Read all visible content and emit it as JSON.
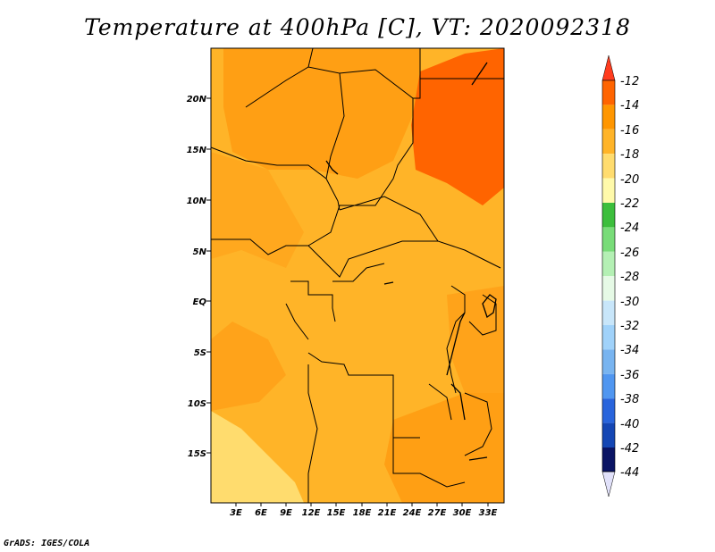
{
  "title": "Temperature at 400hPa [C], VT: 2020092318",
  "footer": "GrADS: IGES/COLA",
  "map": {
    "lat_labels": [
      "20N",
      "15N",
      "10N",
      "5N",
      "EQ",
      "5S",
      "10S",
      "15S"
    ],
    "lon_labels": [
      "3E",
      "6E",
      "9E",
      "12E",
      "15E",
      "18E",
      "21E",
      "24E",
      "27E",
      "30E",
      "33E"
    ]
  },
  "colorbar": {
    "labels": [
      "-12",
      "-14",
      "-16",
      "-18",
      "-20",
      "-22",
      "-24",
      "-26",
      "-28",
      "-30",
      "-32",
      "-34",
      "-36",
      "-38",
      "-40",
      "-42",
      "-44"
    ],
    "colors": {
      "above": "#ff3c1e",
      "c_12_14": "#ff6400",
      "c_14_16": "#ff9600",
      "c_16_18": "#ffb428",
      "c_18_20": "#ffdc6e",
      "c_20_22": "#fffaaa",
      "c_22_24": "#3cbe3c",
      "c_24_26": "#78dc78",
      "c_26_28": "#b4f0b4",
      "c_28_30": "#e6fae6",
      "c_30_32": "#c8e6fa",
      "c_32_34": "#a0d2fa",
      "c_34_36": "#78b4f0",
      "c_36_38": "#5096f0",
      "c_38_40": "#2864dc",
      "c_40_42": "#1446b4",
      "c_42_44": "#0a1464",
      "below": "#e1e1fa"
    }
  }
}
